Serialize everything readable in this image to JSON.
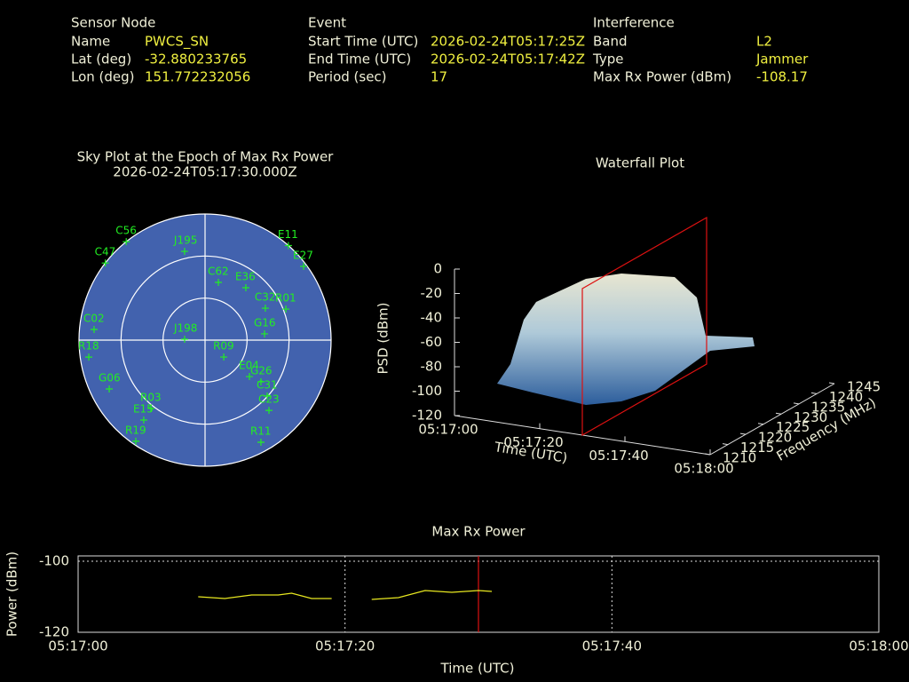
{
  "header": {
    "sections": [
      {
        "title": "Sensor Node",
        "fields": [
          [
            "Name",
            "PWCS_SN"
          ],
          [
            "Lat (deg)",
            -32.880233765
          ],
          [
            "Lon (deg)",
            151.772232056
          ]
        ]
      },
      {
        "title": "Event",
        "fields": [
          [
            "Start Time (UTC)",
            "2026-02-24T05:17:25Z"
          ],
          [
            "End Time (UTC)",
            "2026-02-24T05:17:42Z"
          ],
          [
            "Period (sec)",
            17
          ]
        ]
      },
      {
        "title": "Interference",
        "fields": [
          [
            "Band",
            "L2"
          ],
          [
            "Type",
            "Jammer"
          ],
          [
            "Max Rx Power (dBm)",
            -108.17
          ]
        ]
      }
    ]
  },
  "chart_data": [
    {
      "type": "polar",
      "title": "Sky Plot at the Epoch of Max Rx Power",
      "subtitle": "2026-02-24T05:17:30.000Z",
      "categories": [
        "E11",
        "E27",
        "C56",
        "J195",
        "E36",
        "C32",
        "R01",
        "G16",
        "R18",
        "G06",
        "R11",
        "R19",
        "E15",
        "C23",
        "C31",
        "G26",
        "E04",
        "R03",
        "C02",
        "C47",
        "C62",
        "R09",
        "J198"
      ],
      "azimuth": [
        41.4,
        53.2,
        321.3,
        347,
        37.9,
        62.1,
        69,
        84,
        261.7,
        243,
        151.3,
        214.4,
        217.5,
        137.7,
        132,
        126.7,
        129.4,
        218.4,
        275.5,
        307.7,
        13,
        132.1,
        272.5
      ],
      "elevation": [
        0,
        2.1,
        0,
        25,
        42.6,
        41.3,
        28.2,
        47.3,
        6.1,
        13.2,
        6.9,
        2.5,
        18.1,
        22.2,
        30.3,
        40.2,
        49,
        27.8,
        10.4,
        0,
        47.7,
        72,
        75.4
      ],
      "rlim": [
        90,
        0
      ],
      "rticks": [
        0,
        30,
        60
      ],
      "color": "#22ee22"
    },
    {
      "type": "surface",
      "title": "Waterfall Plot",
      "xlabel": "Time (UTC)",
      "ylabel": "Frequency (MHz)",
      "zlabel": "PSD (dBm)",
      "xlim": [
        0,
        60
      ],
      "xticks": [
        {
          "value": 0,
          "label": "05:17:00"
        },
        {
          "value": 20,
          "label": "05:17:20"
        },
        {
          "value": 40,
          "label": "05:17:40"
        },
        {
          "value": 60,
          "label": "05:18:00"
        }
      ],
      "ylim": [
        1210,
        1245
      ],
      "yticks": [
        1210,
        1215,
        1220,
        1225,
        1230,
        1235,
        1240,
        1245
      ],
      "zlim": [
        -120,
        0
      ],
      "zticks": [
        0,
        -20,
        -40,
        -60,
        -80,
        -100,
        -120
      ],
      "marker_x": 30,
      "marker_color": "#dd1111"
    },
    {
      "type": "line",
      "title": "Max Rx Power",
      "xlabel": "Time (UTC)",
      "ylabel": "Power (dBm)",
      "x": [
        9,
        11,
        13,
        15,
        16,
        17.5,
        19,
        20.5,
        22,
        24,
        26,
        28,
        30,
        31
      ],
      "values": [
        -110,
        -110.5,
        -109.5,
        -109.5,
        -109,
        -110.5,
        -110.5,
        null,
        -110.75,
        -110.25,
        -108.25,
        -108.75,
        -108.25,
        -108.5
      ],
      "xlim": [
        0,
        60
      ],
      "xticks": [
        {
          "value": 0,
          "label": "05:17:00"
        },
        {
          "value": 20,
          "label": "05:17:20"
        },
        {
          "value": 40,
          "label": "05:17:40"
        },
        {
          "value": 60,
          "label": "05:18:00"
        }
      ],
      "ylim": [
        -120,
        -98.5
      ],
      "yticks": [
        -120,
        -100
      ],
      "grid": true,
      "color": "#e8e820",
      "marker_x": 30,
      "marker_color": "#dd1111"
    }
  ]
}
